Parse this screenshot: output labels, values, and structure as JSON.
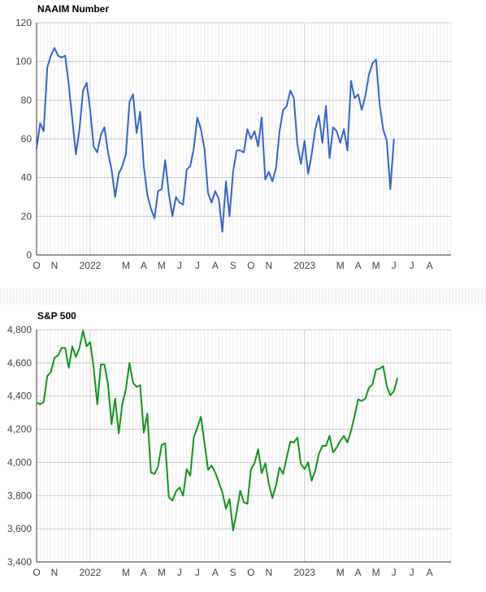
{
  "chart_data": [
    {
      "type": "line",
      "title": "NAAIM Number",
      "xlabel": "",
      "ylabel": "",
      "ylim": [
        0,
        120
      ],
      "yticks": [
        0,
        20,
        40,
        60,
        80,
        100,
        120
      ],
      "ytick_labels": [
        "0",
        "20",
        "40",
        "60",
        "80",
        "100",
        "120"
      ],
      "xlim": [
        0,
        116
      ],
      "xticks": [
        {
          "label": "O",
          "x": 0
        },
        {
          "label": "N",
          "x": 5
        },
        {
          "label": "2022",
          "x": 15
        },
        {
          "label": "M",
          "x": 25
        },
        {
          "label": "A",
          "x": 30
        },
        {
          "label": "M",
          "x": 35
        },
        {
          "label": "J",
          "x": 40
        },
        {
          "label": "J",
          "x": 45
        },
        {
          "label": "A",
          "x": 50
        },
        {
          "label": "S",
          "x": 55
        },
        {
          "label": "O",
          "x": 60
        },
        {
          "label": "N",
          "x": 65
        },
        {
          "label": "2023",
          "x": 75
        },
        {
          "label": "M",
          "x": 85
        },
        {
          "label": "A",
          "x": 90
        },
        {
          "label": "M",
          "x": 95
        },
        {
          "label": "J",
          "x": 100
        },
        {
          "label": "J",
          "x": 105
        },
        {
          "label": "A",
          "x": 110
        }
      ],
      "grid": true,
      "legend": "none",
      "color": "#3366cc",
      "series": [
        {
          "values": [
            55,
            68,
            64,
            97,
            103,
            107,
            103,
            102,
            103,
            88,
            70,
            52,
            65,
            85,
            89,
            75,
            56,
            53,
            62,
            66,
            53,
            44,
            30,
            42,
            46,
            52,
            79,
            83,
            63,
            74,
            46,
            31,
            24,
            19,
            33,
            34,
            49,
            32,
            20,
            30,
            27,
            26,
            44,
            46,
            55,
            71,
            65,
            55,
            32,
            27,
            33,
            29,
            12,
            38,
            20,
            43,
            54,
            54,
            53,
            65,
            60,
            64,
            56,
            71,
            39,
            43,
            38,
            45,
            64,
            75,
            77,
            85,
            81,
            57,
            47,
            59,
            42,
            52,
            65,
            72,
            58,
            77,
            50,
            66,
            64,
            58,
            65,
            54,
            90,
            81,
            83,
            75,
            82,
            93,
            99,
            101,
            78,
            65,
            59,
            34,
            60
          ]
        }
      ]
    },
    {
      "type": "line",
      "title": "S&P 500",
      "xlabel": "",
      "ylabel": "",
      "ylim": [
        3400,
        4800
      ],
      "yticks": [
        3400,
        3600,
        3800,
        4000,
        4200,
        4400,
        4600,
        4800
      ],
      "ytick_labels": [
        "3,400",
        "3,600",
        "3,800",
        "4,000",
        "4,200",
        "4,400",
        "4,600",
        "4,800"
      ],
      "xlim": [
        0,
        116
      ],
      "xticks": [
        {
          "label": "O",
          "x": 0
        },
        {
          "label": "N",
          "x": 5
        },
        {
          "label": "2022",
          "x": 15
        },
        {
          "label": "M",
          "x": 25
        },
        {
          "label": "A",
          "x": 30
        },
        {
          "label": "M",
          "x": 35
        },
        {
          "label": "J",
          "x": 40
        },
        {
          "label": "J",
          "x": 45
        },
        {
          "label": "A",
          "x": 50
        },
        {
          "label": "S",
          "x": 55
        },
        {
          "label": "O",
          "x": 60
        },
        {
          "label": "N",
          "x": 65
        },
        {
          "label": "2023",
          "x": 75
        },
        {
          "label": "M",
          "x": 85
        },
        {
          "label": "A",
          "x": 90
        },
        {
          "label": "M",
          "x": 95
        },
        {
          "label": "J",
          "x": 100
        },
        {
          "label": "J",
          "x": 105
        },
        {
          "label": "A",
          "x": 110
        }
      ],
      "grid": true,
      "legend": "none",
      "color": "#109618",
      "series": [
        {
          "values": [
            4360,
            4350,
            4365,
            4520,
            4545,
            4630,
            4645,
            4690,
            4690,
            4570,
            4700,
            4635,
            4690,
            4795,
            4700,
            4725,
            4570,
            4350,
            4590,
            4590,
            4470,
            4230,
            4385,
            4175,
            4350,
            4440,
            4600,
            4480,
            4455,
            4465,
            4180,
            4295,
            3940,
            3930,
            3975,
            4105,
            4115,
            3790,
            3770,
            3825,
            3850,
            3800,
            3960,
            3920,
            4150,
            4210,
            4275,
            4120,
            3955,
            3980,
            3940,
            3880,
            3820,
            3720,
            3780,
            3590,
            3700,
            3830,
            3760,
            3750,
            3960,
            3995,
            4080,
            3935,
            3995,
            3870,
            3785,
            3860,
            3970,
            3930,
            4030,
            4125,
            4120,
            4150,
            3990,
            3960,
            4000,
            3890,
            3950,
            4050,
            4100,
            4100,
            4160,
            4060,
            4090,
            4130,
            4160,
            4120,
            4190,
            4280,
            4380,
            4370,
            4385,
            4450,
            4470,
            4560,
            4565,
            4580,
            4460,
            4405,
            4430,
            4510
          ]
        }
      ]
    }
  ]
}
